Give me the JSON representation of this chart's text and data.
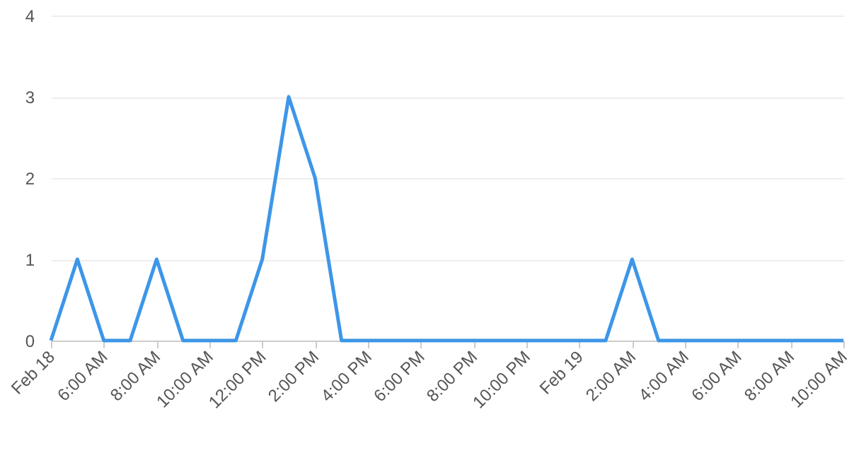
{
  "chart_data": {
    "type": "line",
    "categories": [
      "Feb 18",
      null,
      "6:00 AM",
      null,
      "8:00 AM",
      null,
      "10:00 AM",
      null,
      "12:00 PM",
      null,
      "2:00 PM",
      null,
      "4:00 PM",
      null,
      "6:00 PM",
      null,
      "8:00 PM",
      null,
      "10:00 PM",
      null,
      "Feb 19",
      null,
      "2:00 AM",
      null,
      "4:00 AM",
      null,
      "6:00 AM",
      null,
      "8:00 AM",
      null,
      "10:00 AM"
    ],
    "series": [
      {
        "color": "#3d96e8",
        "values": [
          0,
          1,
          0,
          0,
          1,
          0,
          0,
          0,
          1,
          3,
          2,
          0,
          0,
          0,
          0,
          0,
          0,
          0,
          0,
          0,
          0,
          0,
          1,
          0,
          0,
          0,
          0,
          0,
          0,
          0,
          0
        ]
      }
    ],
    "ylim": [
      0,
      4
    ],
    "yticks": [
      0,
      1,
      2,
      3,
      4
    ],
    "grid": "y",
    "marker": "none",
    "line_style": "solid"
  }
}
